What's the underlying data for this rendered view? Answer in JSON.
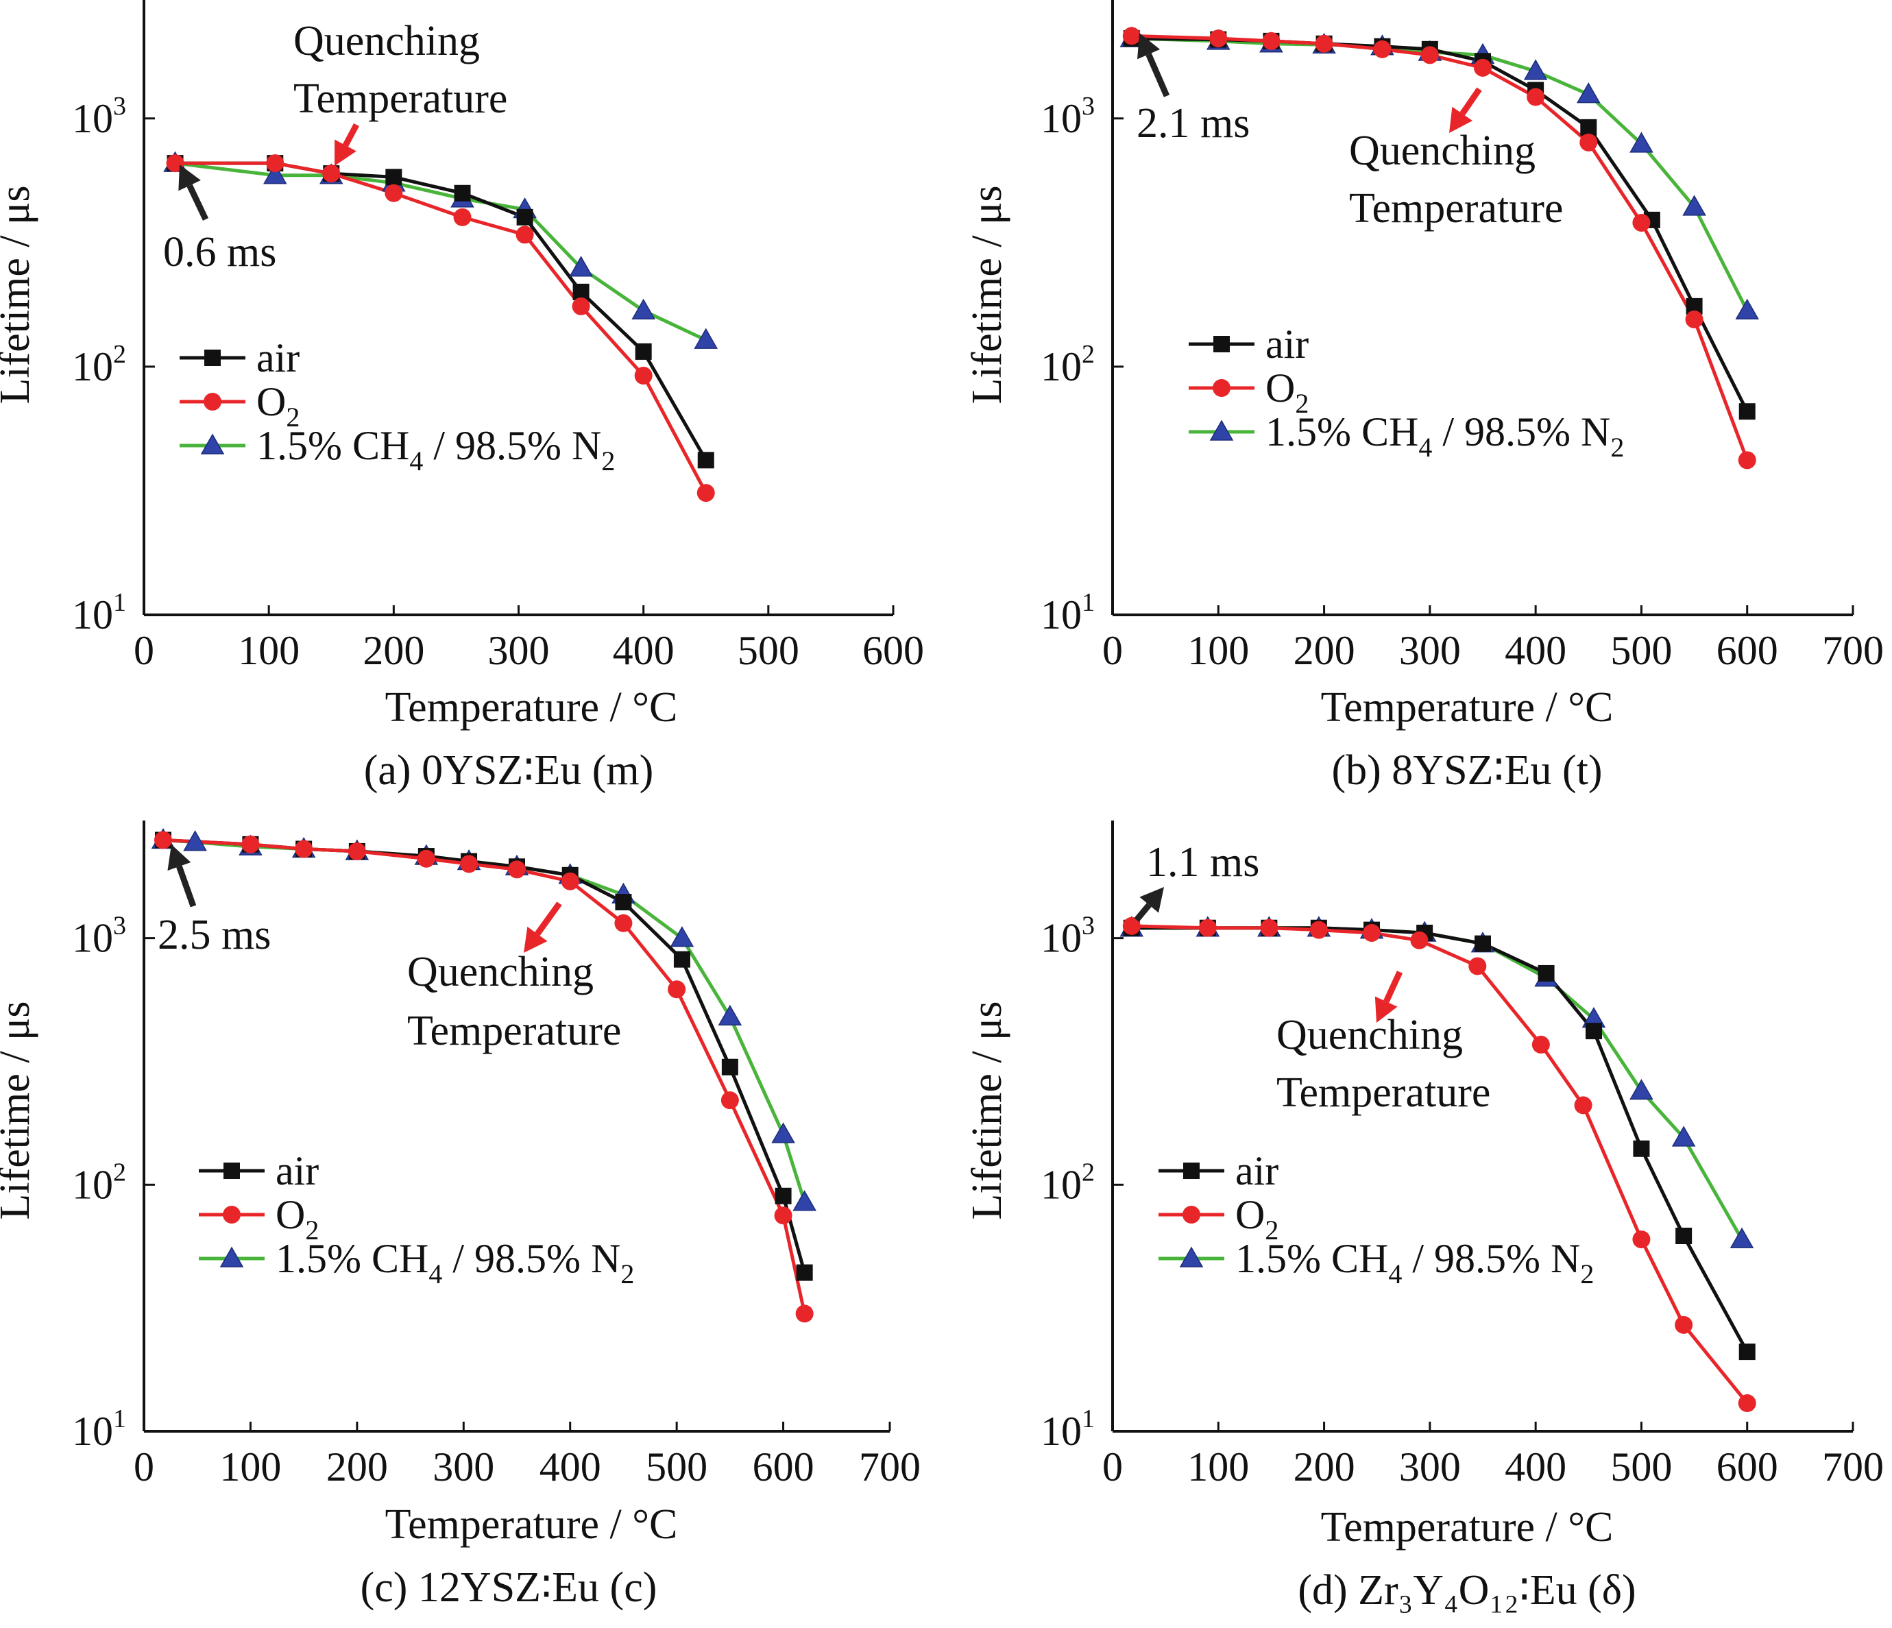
{
  "figure": {
    "colors": {
      "air": "#111111",
      "O2": "#e8262a",
      "CH4_line": "#49b43a",
      "CH4_marker": "#2f43a8",
      "arrow_dark": "#222222",
      "arrow_red": "#e8262a"
    },
    "icons": {
      "air": "square-marker",
      "O2": "circle-marker",
      "CH4": "triangle-marker",
      "arrow": "arrow-icon"
    }
  },
  "chart_data": [
    {
      "type": "line",
      "caption": "(a) 0YSZ∶Eu (m)",
      "xlabel": "Temperature / °C",
      "ylabel": "Lifetime / μs",
      "xlim": [
        0,
        600
      ],
      "x_ticks": [
        "0",
        "100",
        "200",
        "300",
        "400",
        "500",
        "600"
      ],
      "ylim": [
        10,
        3000
      ],
      "y_scale": "log",
      "y_ticks": [
        {
          "base": "10",
          "exp": "1"
        },
        {
          "base": "10",
          "exp": "2"
        },
        {
          "base": "10",
          "exp": "3"
        }
      ],
      "legend": [
        "air",
        "O",
        "1.5% CH",
        " / 98.5% N"
      ],
      "legend_subscripts": [
        "2",
        "4",
        "2"
      ],
      "series": [
        {
          "name": "air",
          "x": [
            25,
            105,
            150,
            200,
            255,
            305,
            350,
            400,
            450
          ],
          "y": [
            660,
            660,
            600,
            580,
            500,
            400,
            200,
            115,
            42
          ]
        },
        {
          "name": "O2",
          "x": [
            25,
            105,
            150,
            200,
            255,
            305,
            350,
            400,
            450
          ],
          "y": [
            660,
            660,
            600,
            500,
            400,
            340,
            175,
            92,
            31
          ]
        },
        {
          "name": "1.5% CH4 / 98.5% N2",
          "x": [
            25,
            105,
            150,
            200,
            255,
            305,
            350,
            400,
            450
          ],
          "y": [
            660,
            590,
            590,
            550,
            475,
            430,
            250,
            168,
            128
          ]
        }
      ],
      "annotations": [
        {
          "text": "0.6 ms",
          "color": "dark"
        },
        {
          "text": "Quenching",
          "text2": "Temperature",
          "color": "red"
        }
      ]
    },
    {
      "type": "line",
      "caption": "(b) 8YSZ∶Eu (t)",
      "xlabel": "Temperature / °C",
      "ylabel": "Lifetime / μs",
      "xlim": [
        0,
        700
      ],
      "x_ticks": [
        "0",
        "100",
        "200",
        "300",
        "400",
        "500",
        "600",
        "700"
      ],
      "ylim": [
        10,
        3000
      ],
      "y_scale": "log",
      "y_ticks": [
        {
          "base": "10",
          "exp": "1"
        },
        {
          "base": "10",
          "exp": "2"
        },
        {
          "base": "10",
          "exp": "3"
        }
      ],
      "legend": [
        "air",
        "O",
        "1.5% CH",
        " / 98.5% N"
      ],
      "legend_subscripts": [
        "2",
        "4",
        "2"
      ],
      "series": [
        {
          "name": "air",
          "x": [
            18,
            100,
            150,
            200,
            255,
            300,
            350,
            400,
            450,
            510,
            550,
            600
          ],
          "y": [
            2100,
            2080,
            2050,
            2000,
            1950,
            1900,
            1700,
            1300,
            920,
            390,
            175,
            66
          ]
        },
        {
          "name": "O2",
          "x": [
            18,
            100,
            150,
            200,
            255,
            300,
            350,
            400,
            450,
            500,
            550,
            600
          ],
          "y": [
            2150,
            2100,
            2050,
            2000,
            1900,
            1800,
            1600,
            1220,
            800,
            380,
            155,
            42
          ]
        },
        {
          "name": "1.5% CH4 / 98.5% N2",
          "x": [
            18,
            100,
            150,
            200,
            255,
            300,
            350,
            400,
            450,
            500,
            550,
            600
          ],
          "y": [
            2100,
            2050,
            2000,
            1980,
            1950,
            1850,
            1800,
            1550,
            1250,
            790,
            440,
            168
          ]
        }
      ],
      "annotations": [
        {
          "text": "2.1 ms",
          "color": "dark"
        },
        {
          "text": "Quenching",
          "text2": "Temperature",
          "color": "red"
        }
      ]
    },
    {
      "type": "line",
      "caption": "(c) 12YSZ∶Eu (c)",
      "xlabel": "Temperature / °C",
      "ylabel": "Lifetime / μs",
      "xlim": [
        0,
        700
      ],
      "x_ticks": [
        "0",
        "100",
        "200",
        "300",
        "400",
        "500",
        "600",
        "700"
      ],
      "ylim": [
        10,
        3000
      ],
      "y_scale": "log",
      "y_ticks": [
        {
          "base": "10",
          "exp": "1"
        },
        {
          "base": "10",
          "exp": "2"
        },
        {
          "base": "10",
          "exp": "3"
        }
      ],
      "legend": [
        "air",
        "O",
        "1.5% CH",
        " / 98.5% N"
      ],
      "legend_subscripts": [
        "2",
        "4",
        "2"
      ],
      "series": [
        {
          "name": "air",
          "x": [
            18,
            100,
            150,
            200,
            265,
            305,
            350,
            400,
            450,
            505,
            550,
            600,
            620
          ],
          "y": [
            2500,
            2400,
            2300,
            2250,
            2150,
            2050,
            1950,
            1800,
            1400,
            820,
            300,
            90,
            44
          ]
        },
        {
          "name": "O2",
          "x": [
            18,
            100,
            150,
            200,
            265,
            305,
            350,
            400,
            450,
            500,
            550,
            600,
            620
          ],
          "y": [
            2500,
            2400,
            2300,
            2250,
            2100,
            2000,
            1900,
            1700,
            1150,
            620,
            220,
            75,
            30
          ]
        },
        {
          "name": "1.5% CH4 / 98.5% N2",
          "x": [
            18,
            48,
            100,
            150,
            200,
            265,
            305,
            350,
            400,
            450,
            505,
            550,
            600,
            620
          ],
          "y": [
            2500,
            2450,
            2350,
            2300,
            2250,
            2150,
            2050,
            1950,
            1800,
            1500,
            1000,
            480,
            160,
            85
          ]
        }
      ],
      "annotations": [
        {
          "text": "2.5 ms",
          "color": "dark"
        },
        {
          "text": "Quenching",
          "text2": "Temperature",
          "color": "red"
        }
      ]
    },
    {
      "type": "line",
      "caption": "(d) Zr₃Y₄O₁₂∶Eu (δ)",
      "xlabel": "Temperature / °C",
      "ylabel": "Lifetime / μs",
      "xlim": [
        0,
        700
      ],
      "x_ticks": [
        "0",
        "100",
        "200",
        "300",
        "400",
        "500",
        "600",
        "700"
      ],
      "ylim": [
        10,
        3000
      ],
      "y_scale": "log",
      "y_ticks": [
        {
          "base": "10",
          "exp": "1"
        },
        {
          "base": "10",
          "exp": "2"
        },
        {
          "base": "10",
          "exp": "3"
        }
      ],
      "legend": [
        "air",
        "O",
        "1.5% CH",
        " / 98.5% N"
      ],
      "legend_subscripts": [
        "2",
        "4",
        "2"
      ],
      "series": [
        {
          "name": "air",
          "x": [
            18,
            90,
            148,
            195,
            245,
            295,
            350,
            410,
            455,
            500,
            540,
            600
          ],
          "y": [
            1100,
            1100,
            1100,
            1100,
            1080,
            1050,
            950,
            720,
            420,
            140,
            62,
            21
          ]
        },
        {
          "name": "O2",
          "x": [
            18,
            90,
            148,
            195,
            245,
            290,
            345,
            405,
            445,
            500,
            540,
            600
          ],
          "y": [
            1120,
            1100,
            1100,
            1080,
            1050,
            980,
            770,
            370,
            210,
            60,
            27,
            13
          ]
        },
        {
          "name": "1.5% CH4 / 98.5% N2",
          "x": [
            18,
            90,
            148,
            195,
            245,
            295,
            350,
            410,
            455,
            500,
            540,
            595
          ],
          "y": [
            1100,
            1100,
            1100,
            1100,
            1080,
            1050,
            950,
            690,
            470,
            240,
            155,
            60
          ]
        }
      ],
      "annotations": [
        {
          "text": "1.1 ms",
          "color": "dark"
        },
        {
          "text": "Quenching",
          "text2": "Temperature",
          "color": "red"
        }
      ]
    }
  ]
}
